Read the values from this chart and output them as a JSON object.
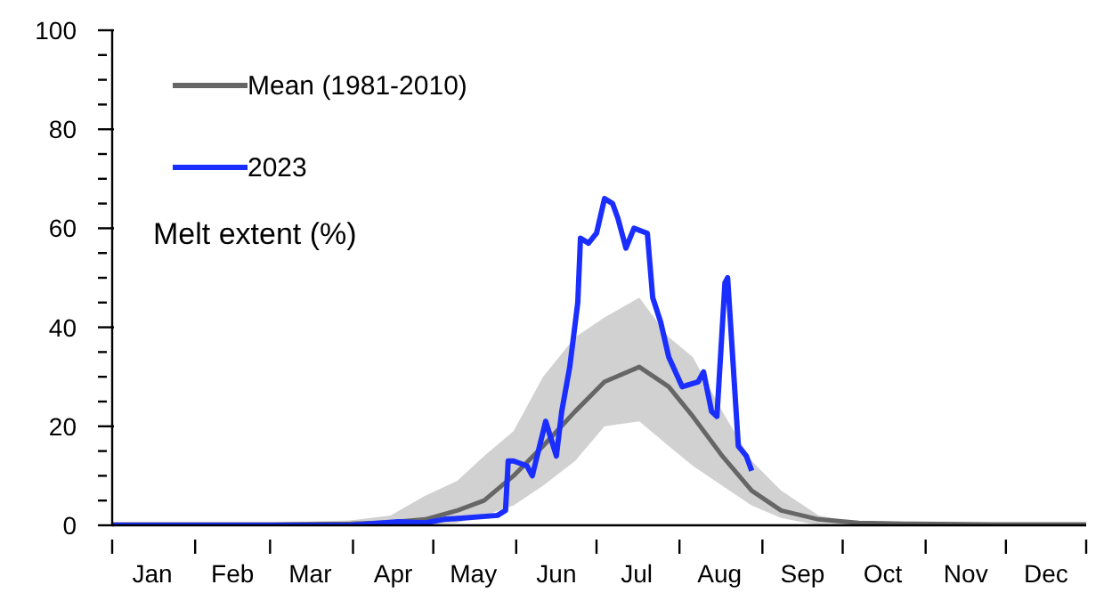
{
  "chart_data": {
    "type": "line",
    "ylabel": "Melt extent (%)",
    "xlim": [
      "--01-01",
      "--12-31"
    ],
    "xticks": [
      {
        "value": "--01-01",
        "label": null
      },
      {
        "value": "--01-16",
        "label": "Jan"
      },
      {
        "value": "--02-01",
        "label": null
      },
      {
        "value": "--02-15",
        "label": "Feb"
      },
      {
        "value": "--03-01",
        "label": null
      },
      {
        "value": "--03-16",
        "label": "Mar"
      },
      {
        "value": "--04-01",
        "label": null
      },
      {
        "value": "--04-16",
        "label": "Apr"
      },
      {
        "value": "--05-01",
        "label": null
      },
      {
        "value": "--05-16",
        "label": "May"
      },
      {
        "value": "--06-01",
        "label": null
      },
      {
        "value": "--06-16",
        "label": "Jun"
      },
      {
        "value": "--07-01",
        "label": null
      },
      {
        "value": "--07-16",
        "label": "Jul"
      },
      {
        "value": "--08-01",
        "label": null
      },
      {
        "value": "--08-16",
        "label": "Aug"
      },
      {
        "value": "--09-01",
        "label": null
      },
      {
        "value": "--09-16",
        "label": "Sep"
      },
      {
        "value": "--10-01",
        "label": null
      },
      {
        "value": "--10-16",
        "label": "Oct"
      },
      {
        "value": "--11-01",
        "label": null
      },
      {
        "value": "--11-16",
        "label": "Nov"
      },
      {
        "value": "--12-01",
        "label": null
      },
      {
        "value": "--12-16",
        "label": "Dec"
      },
      {
        "value": "--12-31",
        "label": null
      }
    ],
    "ylim": [
      0,
      100
    ],
    "yticks": [
      0,
      {
        "value": 5,
        "label": null
      },
      {
        "value": 10,
        "label": null
      },
      {
        "value": 15,
        "label": null
      },
      20,
      {
        "value": 25,
        "label": null
      },
      {
        "value": 30,
        "label": null
      },
      {
        "value": 35,
        "label": null
      },
      40,
      {
        "value": 45,
        "label": null
      },
      {
        "value": 50,
        "label": null
      },
      {
        "value": 55,
        "label": null
      },
      60,
      {
        "value": 65,
        "label": null
      },
      {
        "value": 70,
        "label": null
      },
      {
        "value": 75,
        "label": null
      },
      80,
      {
        "value": 85,
        "label": null
      },
      {
        "value": 90,
        "label": null
      },
      {
        "value": 95,
        "label": null
      },
      100
    ],
    "legend": "top left",
    "marker": "none",
    "line_style": "solid",
    "series": [
      {
        "name": "Mean (1981-2010)",
        "color": "#666666",
        "x": [
          "--01-01",
          "--03-01",
          "--03-31",
          "--04-15",
          "--04-28",
          "--05-10",
          "--05-20",
          "--05-31",
          "--06-11",
          "--06-23",
          "--07-04",
          "--07-17",
          "--07-28",
          "--08-06",
          "--08-17",
          "--08-28",
          "--09-08",
          "--09-22",
          "--10-07",
          "--10-27",
          "--11-26",
          "--12-31"
        ],
        "values": [
          0.2,
          0.2,
          0.3,
          0.6,
          1.2,
          3,
          5,
          10,
          16,
          23,
          29,
          32,
          28,
          22,
          14,
          7,
          3,
          1.2,
          0.5,
          0.3,
          0.2,
          0.2
        ],
        "lower": [
          0,
          0,
          0,
          0,
          0,
          0.5,
          2,
          4,
          8,
          13,
          20,
          21,
          16,
          12,
          8,
          4,
          1.5,
          0,
          0,
          0,
          0,
          0
        ],
        "upper": [
          0.5,
          0.5,
          1,
          2,
          6,
          9,
          14,
          19,
          30,
          38,
          42,
          46,
          38,
          34,
          23,
          13,
          7,
          2,
          0.5,
          0.5,
          0.5,
          0.5
        ]
      },
      {
        "name": "2023",
        "color": "#1a2eff",
        "x": [
          "--01-01",
          "--03-01",
          "--03-31",
          "--04-18",
          "--04-28",
          "--05-05",
          "--05-25",
          "--05-28",
          "--05-29",
          "--05-31",
          "--06-05",
          "--06-07",
          "--06-12",
          "--06-16",
          "--06-18",
          "--06-21",
          "--06-24",
          "--06-25",
          "--06-28",
          "--07-01",
          "--07-04",
          "--07-07",
          "--07-09",
          "--07-12",
          "--07-15",
          "--07-20",
          "--07-22",
          "--07-25",
          "--07-28",
          "--08-02",
          "--08-08",
          "--08-10",
          "--08-13",
          "--08-15",
          "--08-18",
          "--08-19",
          "--08-23",
          "--08-26",
          "--08-28"
        ],
        "values": [
          0,
          0,
          0,
          0.7,
          0.5,
          1.2,
          2,
          3,
          13,
          13,
          12,
          10,
          21,
          14,
          23,
          32,
          45,
          58,
          57,
          59,
          66,
          65,
          62,
          56,
          60,
          59,
          46,
          41,
          34,
          28,
          29,
          31,
          23,
          22,
          49,
          50,
          16,
          14,
          11
        ]
      }
    ]
  }
}
